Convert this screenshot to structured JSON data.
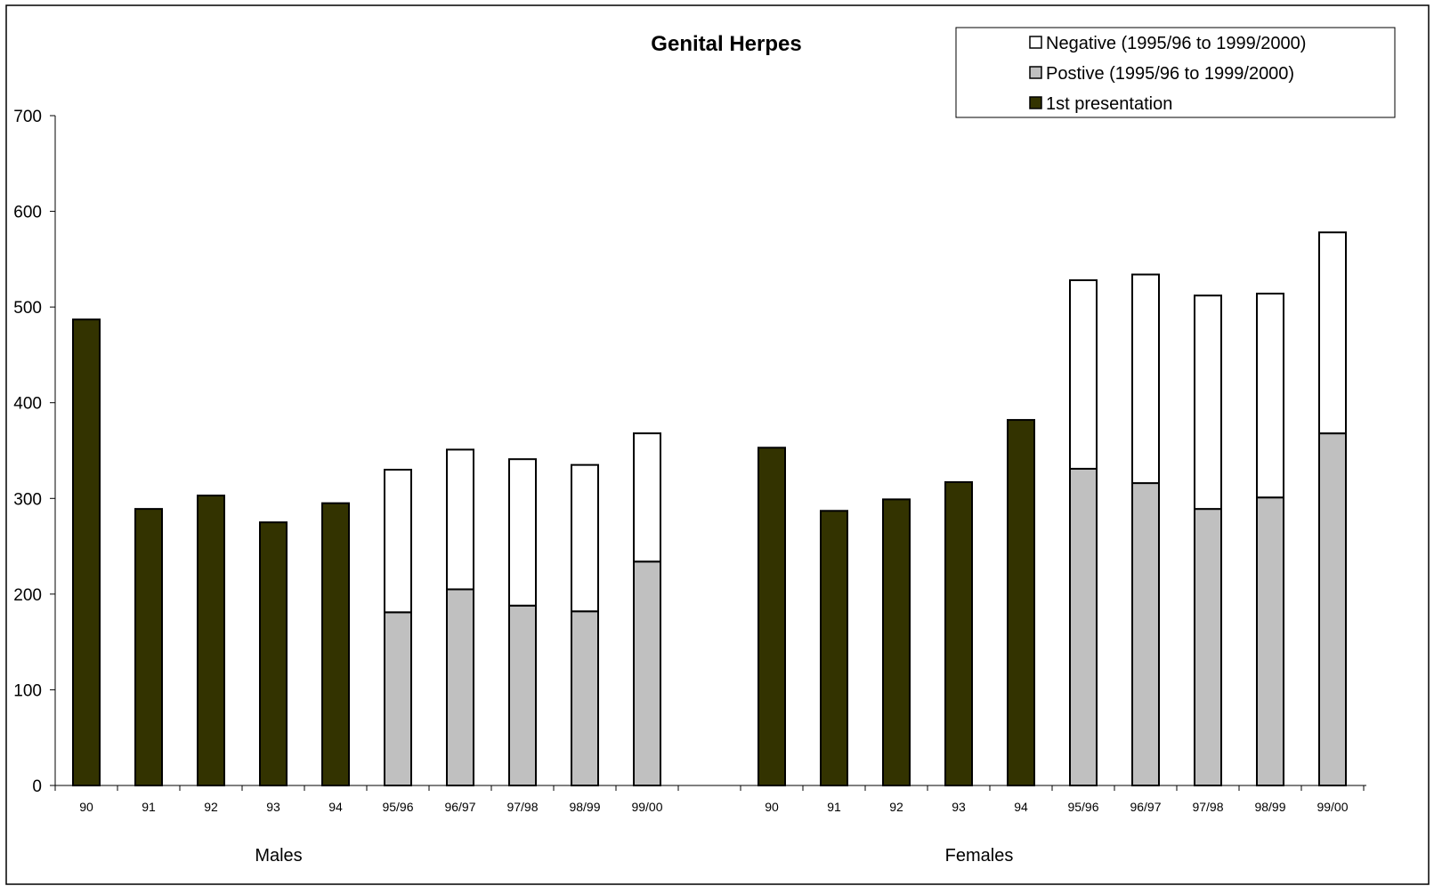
{
  "chart_data": {
    "type": "bar",
    "stacked": true,
    "title": "Genital Herpes",
    "xlabel": "",
    "ylabel": "",
    "ylim": [
      0,
      700
    ],
    "yticks": [
      0,
      100,
      200,
      300,
      400,
      500,
      600,
      700
    ],
    "grid": false,
    "legend_position": "top-right",
    "groups": [
      {
        "label": "Males",
        "categories": [
          "90",
          "91",
          "92",
          "93",
          "94",
          "95/96",
          "96/97",
          "97/98",
          "98/99",
          "99/00"
        ],
        "first_presentation": [
          487,
          289,
          303,
          275,
          295,
          null,
          null,
          null,
          null,
          null
        ],
        "positive": [
          null,
          null,
          null,
          null,
          null,
          181,
          205,
          188,
          182,
          234
        ],
        "negative": [
          null,
          null,
          null,
          null,
          null,
          149,
          146,
          153,
          153,
          134
        ]
      },
      {
        "label": "Females",
        "categories": [
          "90",
          "91",
          "92",
          "93",
          "94",
          "95/96",
          "96/97",
          "97/98",
          "98/99",
          "99/00"
        ],
        "first_presentation": [
          353,
          287,
          299,
          317,
          382,
          null,
          null,
          null,
          null,
          null
        ],
        "positive": [
          null,
          null,
          null,
          null,
          null,
          331,
          316,
          289,
          301,
          368
        ],
        "negative": [
          null,
          null,
          null,
          null,
          null,
          197,
          218,
          223,
          213,
          210
        ]
      }
    ],
    "series": [
      {
        "key": "negative",
        "name": "Negative (1995/96 to 1999/2000)",
        "color": "#ffffff"
      },
      {
        "key": "positive",
        "name": "Postive (1995/96 to 1999/2000)",
        "color": "#c0c0c0"
      },
      {
        "key": "first_presentation",
        "name": "1st presentation",
        "color": "#333300"
      }
    ]
  }
}
